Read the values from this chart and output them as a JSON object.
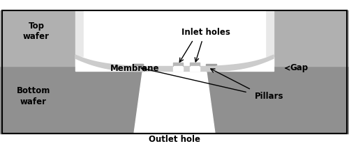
{
  "fig_width": 5.0,
  "fig_height": 2.1,
  "dpi": 100,
  "bg_color": "#ffffff",
  "top_wafer_side_color": "#b0b0b0",
  "top_wafer_center_color": "#e8e8e8",
  "bottom_wafer_color": "#909090",
  "membrane_color": "#cccccc",
  "pillar_top_color": "#a8a8a8",
  "labels": {
    "top_wafer": "Top\nwafer",
    "bottom_wafer": "Bottom\nwafer",
    "membrane": "Membrane",
    "inlet_holes": "Inlet holes",
    "gap": "Gap",
    "pillars": "Pillars",
    "outlet_hole": "Outlet hole"
  }
}
